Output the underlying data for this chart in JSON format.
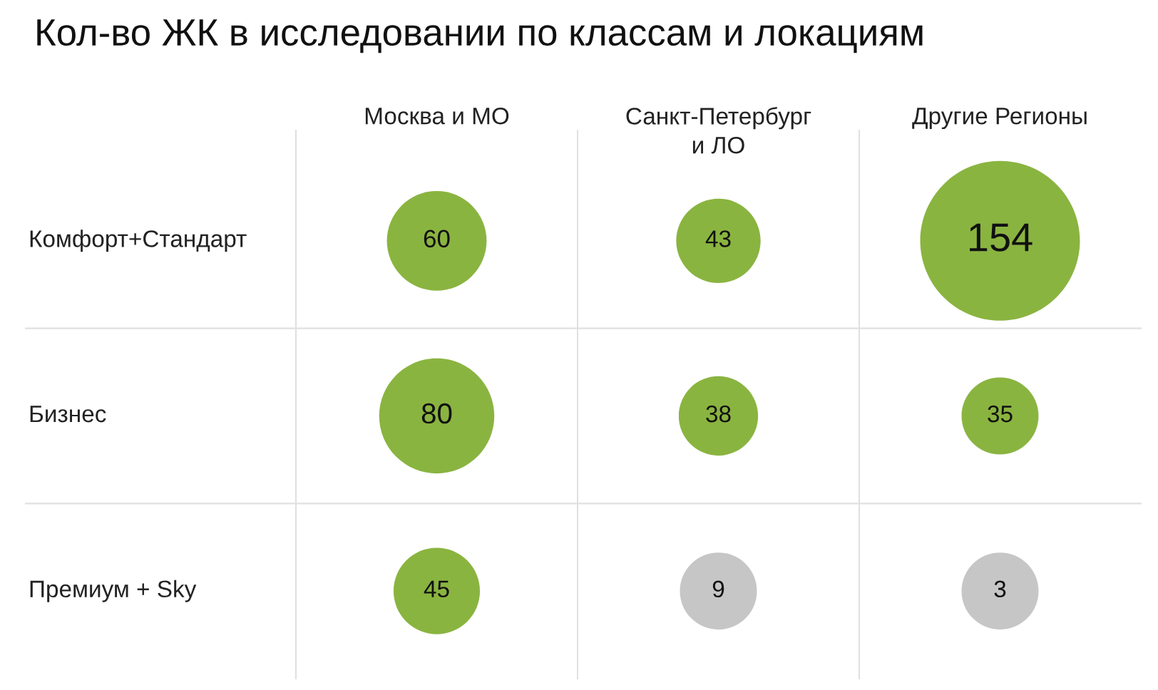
{
  "chart_data": {
    "type": "heatmap",
    "title": "Кол-во ЖК в исследовании по классам и локациям",
    "categories": [
      "Москва и МО",
      "Санкт-Петербург\nи ЛО",
      "Другие Регионы"
    ],
    "y_categories": [
      "Комфорт+Стандарт",
      "Бизнес",
      "Премиум + Sky"
    ],
    "cells": [
      [
        60,
        43,
        154
      ],
      [
        80,
        38,
        35
      ],
      [
        45,
        9,
        3
      ]
    ],
    "colors": [
      [
        "#8ab440",
        "#8ab440",
        "#8ab440"
      ],
      [
        "#8ab440",
        "#8ab440",
        "#8ab440"
      ],
      [
        "#8ab440",
        "#c6c6c6",
        "#c6c6c6"
      ]
    ],
    "data_labels": true,
    "grid": true
  }
}
